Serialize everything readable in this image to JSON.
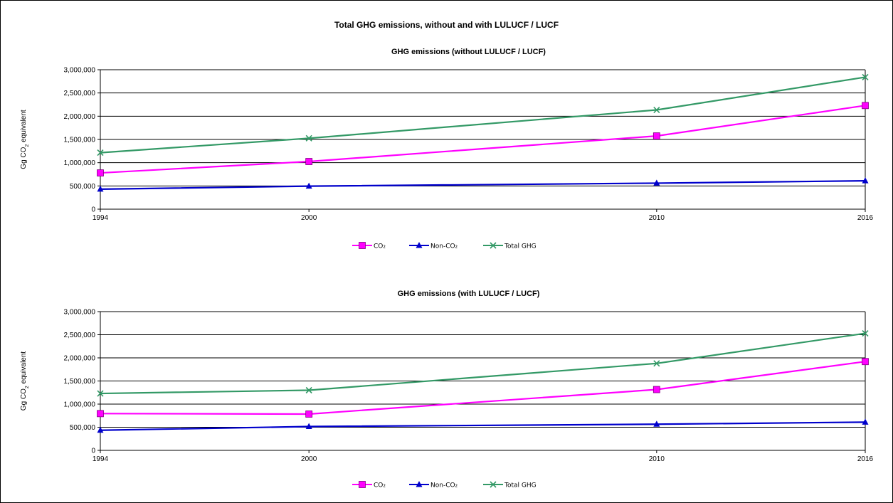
{
  "main_title": "Total GHG emissions, without and with LULUCF / LUCF",
  "chart_data": [
    {
      "type": "line",
      "title": "GHG emissions (without LULUCF / LUCF)",
      "ylabel_prefix": "Gg CO",
      "ylabel_sub": "2",
      "ylabel_suffix": " equivalent",
      "xlabel": "",
      "x": [
        "1994",
        "2000",
        "2010",
        "2016"
      ],
      "ylim": [
        0,
        3000000
      ],
      "yticks": [
        "0",
        "500,000",
        "1,000,000",
        "1,500,000",
        "2,000,000",
        "2,500,000",
        "3,000,000"
      ],
      "grid": "horizontal",
      "legend_position": "bottom",
      "series": [
        {
          "name": "CO₂",
          "color": "#ff00ff",
          "marker": "square",
          "values": [
            780000,
            1025000,
            1575000,
            2230000
          ]
        },
        {
          "name": "Non-CO₂",
          "color": "#0000cc",
          "marker": "triangle",
          "values": [
            430000,
            495000,
            560000,
            610000
          ]
        },
        {
          "name": "Total GHG",
          "color": "#339966",
          "marker": "x",
          "values": [
            1215000,
            1525000,
            2135000,
            2840000
          ]
        }
      ]
    },
    {
      "type": "line",
      "title": "GHG emissions (with LULUCF / LUCF)",
      "ylabel_prefix": "Gg CO",
      "ylabel_sub": "2",
      "ylabel_suffix": " equivalent",
      "xlabel": "",
      "x": [
        "1994",
        "2000",
        "2010",
        "2016"
      ],
      "ylim": [
        0,
        3000000
      ],
      "yticks": [
        "0",
        "500,000",
        "1,000,000",
        "1,500,000",
        "2,000,000",
        "2,500,000",
        "3,000,000"
      ],
      "grid": "horizontal",
      "legend_position": "bottom",
      "series": [
        {
          "name": "CO₂",
          "color": "#ff00ff",
          "marker": "square",
          "values": [
            795000,
            785000,
            1315000,
            1920000
          ]
        },
        {
          "name": "Non-CO₂",
          "color": "#0000cc",
          "marker": "triangle",
          "values": [
            435000,
            515000,
            565000,
            610000
          ]
        },
        {
          "name": "Total GHG",
          "color": "#339966",
          "marker": "x",
          "values": [
            1230000,
            1300000,
            1880000,
            2530000
          ]
        }
      ]
    }
  ]
}
